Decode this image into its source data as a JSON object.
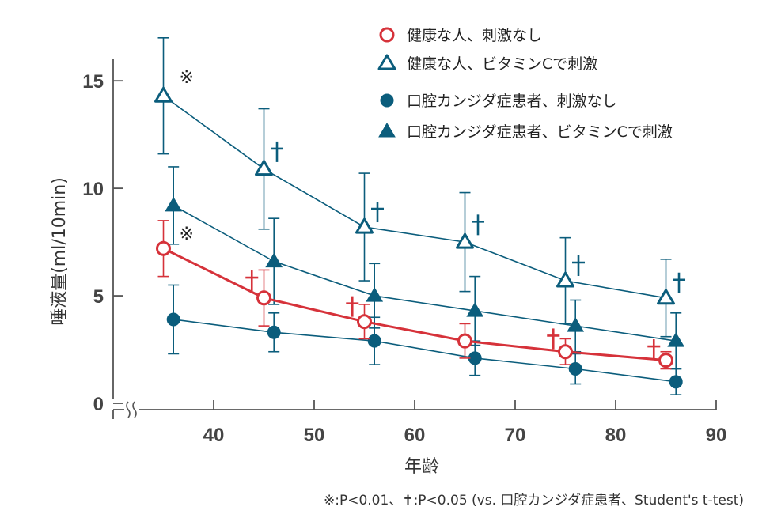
{
  "chart_data": {
    "type": "line",
    "xlabel": "年齢",
    "ylabel": "唾液量(ml/10min)",
    "xlim": [
      30,
      90
    ],
    "ylim": [
      0,
      16
    ],
    "x_ticks": [
      "40",
      "50",
      "60",
      "70",
      "80",
      "90"
    ],
    "y_ticks": [
      "0",
      "5",
      "10",
      "15"
    ],
    "series": [
      {
        "name": "健康な人、刺激なし",
        "marker": "circle-open",
        "color": "#d6323a",
        "x": [
          35,
          45,
          55,
          65,
          75,
          85
        ],
        "values": [
          7.2,
          4.9,
          3.8,
          2.9,
          2.4,
          2.0
        ],
        "err": [
          1.3,
          1.3,
          0.8,
          0.8,
          0.6,
          0.4
        ]
      },
      {
        "name": "健康な人、ビタミンCで刺激",
        "marker": "triangle-open",
        "color": "#0b5d7c",
        "x": [
          35,
          45,
          55,
          65,
          75,
          85
        ],
        "values": [
          14.3,
          10.9,
          8.2,
          7.5,
          5.7,
          4.9
        ],
        "err": [
          2.7,
          2.8,
          2.5,
          2.3,
          2.0,
          1.8
        ]
      },
      {
        "name": "口腔カンジダ症患者、刺激なし",
        "marker": "circle-filled",
        "color": "#0b5d7c",
        "x": [
          36,
          46,
          56,
          66,
          76,
          86
        ],
        "values": [
          3.9,
          3.3,
          2.9,
          2.1,
          1.6,
          1.0
        ],
        "err": [
          1.6,
          0.9,
          1.1,
          0.8,
          0.7,
          0.6
        ]
      },
      {
        "name": "口腔カンジダ症患者、ビタミンCで刺激",
        "marker": "triangle-filled",
        "color": "#0b5d7c",
        "x": [
          36,
          46,
          56,
          66,
          76,
          86
        ],
        "values": [
          9.2,
          6.6,
          5.0,
          4.3,
          3.6,
          2.9
        ],
        "err": [
          1.8,
          2.0,
          1.5,
          1.6,
          1.2,
          1.3
        ]
      }
    ],
    "annotations": [
      {
        "symbol": "※",
        "x": 37.3,
        "y": 15.2,
        "color": "#222"
      },
      {
        "symbol": "※",
        "x": 37.3,
        "y": 7.9,
        "color": "#222"
      },
      {
        "symbol": "✝",
        "x": 43.8,
        "y": 5.7,
        "color": "#d6323a"
      },
      {
        "symbol": "✝",
        "x": 53.8,
        "y": 4.5,
        "color": "#d6323a"
      },
      {
        "symbol": "✝",
        "x": 73.8,
        "y": 3.0,
        "color": "#d6323a"
      },
      {
        "symbol": "✝",
        "x": 83.8,
        "y": 2.5,
        "color": "#d6323a"
      },
      {
        "symbol": "✝",
        "x": 46.3,
        "y": 11.7,
        "color": "#0b5d7c"
      },
      {
        "symbol": "✝",
        "x": 56.3,
        "y": 8.9,
        "color": "#0b5d7c"
      },
      {
        "symbol": "✝",
        "x": 66.3,
        "y": 8.3,
        "color": "#0b5d7c"
      },
      {
        "symbol": "✝",
        "x": 76.3,
        "y": 6.4,
        "color": "#0b5d7c"
      },
      {
        "symbol": "✝",
        "x": 86.3,
        "y": 5.6,
        "color": "#0b5d7c"
      }
    ],
    "footnote": "※:P<0.01、✝:P<0.05 (vs. 口腔カンジダ症患者、Student's t-test)"
  }
}
